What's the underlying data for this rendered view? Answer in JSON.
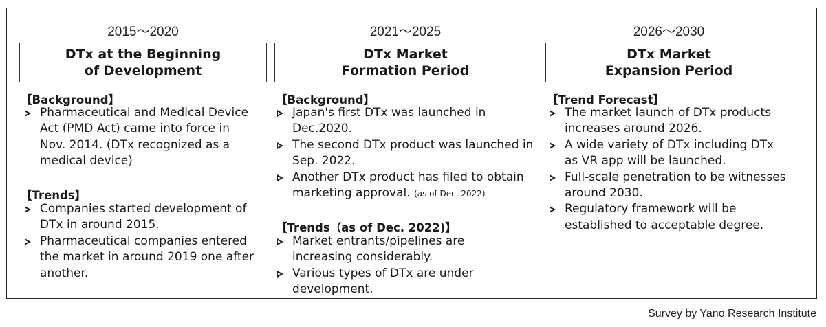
{
  "columns": [
    {
      "period": "2015～2020",
      "phase": "DTx at the Beginning\nof Development",
      "sections": [
        {
          "heading": "【Background】",
          "items": [
            {
              "text": "Pharmaceutical and Medical Device Act (PMD Act) came into force in Nov. 2014. (DTx recognized as a medical device)",
              "note": ""
            }
          ]
        },
        {
          "heading": "【Trends】",
          "items": [
            {
              "text": "Companies started development of DTx in around 2015.",
              "note": ""
            },
            {
              "text": "Pharmaceutical companies entered the market in around 2019 one after another.",
              "note": ""
            }
          ]
        }
      ]
    },
    {
      "period": "2021～2025",
      "phase": "DTx Market\nFormation Period",
      "sections": [
        {
          "heading": "【Background】",
          "items": [
            {
              "text": "Japan's first DTx was launched in Dec.2020.",
              "note": ""
            },
            {
              "text": "The second DTx product was launched in Sep. 2022.",
              "note": ""
            },
            {
              "text": "Another DTx product has filed to obtain marketing approval.",
              "note": "(as of Dec. 2022)"
            }
          ]
        },
        {
          "heading": "【Trends（as of Dec. 2022)】",
          "items": [
            {
              "text": "Market entrants/pipelines are increasing considerably.",
              "note": ""
            },
            {
              "text": "Various types of DTx are under development.",
              "note": ""
            }
          ]
        }
      ]
    },
    {
      "period": "2026～2030",
      "phase": "DTx Market\nExpansion Period",
      "sections": [
        {
          "heading": "【Trend Forecast】",
          "items": [
            {
              "text": "The market launch of DTx products increases around 2026.",
              "note": ""
            },
            {
              "text": "A wide variety of DTx including DTx as VR app will be launched.",
              "note": ""
            },
            {
              "text": "Full-scale penetration to be witnesses around 2030.",
              "note": ""
            },
            {
              "text": "Regulatory framework will be established to acceptable degree.",
              "note": ""
            }
          ]
        }
      ]
    }
  ],
  "source": "Survey by Yano Research Institute"
}
